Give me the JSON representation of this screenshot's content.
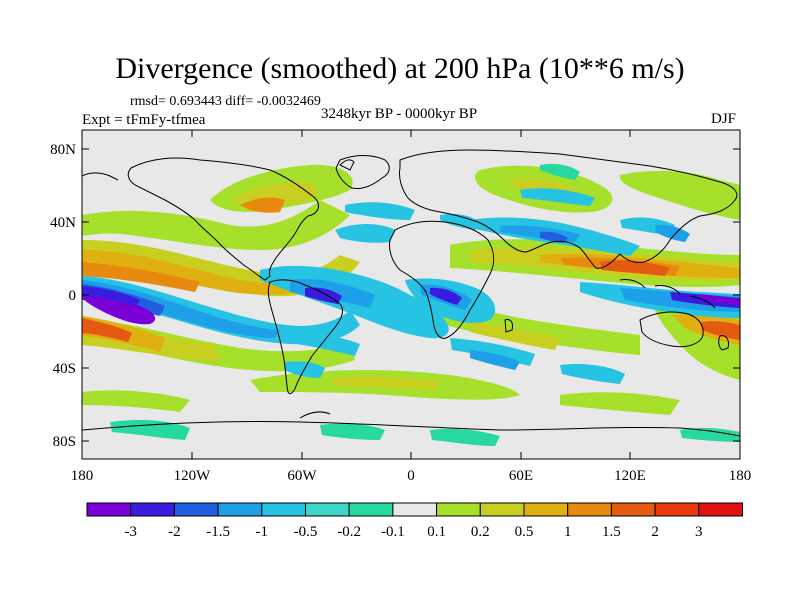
{
  "title": "Divergence (smoothed) at 200 hPa (10**6 m/s)",
  "stats": "rmsd= 0.693443 diff= -0.0032469",
  "experiment": "Expt = tFmFy-tfmea",
  "period": "3248kyr BP - 0000kyr BP",
  "season": "DJF",
  "lat_ticks": [
    "80N",
    "40N",
    "0",
    "40S",
    "80S"
  ],
  "lon_ticks": [
    "180",
    "120W",
    "60W",
    "0",
    "60E",
    "120E",
    "180"
  ],
  "colorbar": {
    "labels": [
      "-3",
      "-2",
      "-1.5",
      "-1",
      "-0.5",
      "-0.2",
      "-0.1",
      "0.1",
      "0.2",
      "0.5",
      "1",
      "1.5",
      "2",
      "3"
    ],
    "colors": [
      "#7a00d8",
      "#3a1be0",
      "#1f5fe0",
      "#1ea0e8",
      "#26c4e2",
      "#3ed6c8",
      "#27d8a0",
      "#e8e8e8",
      "#a6e02a",
      "#c8cf20",
      "#e0b010",
      "#e88a10",
      "#e45a10",
      "#e8380c",
      "#e01010"
    ]
  }
}
